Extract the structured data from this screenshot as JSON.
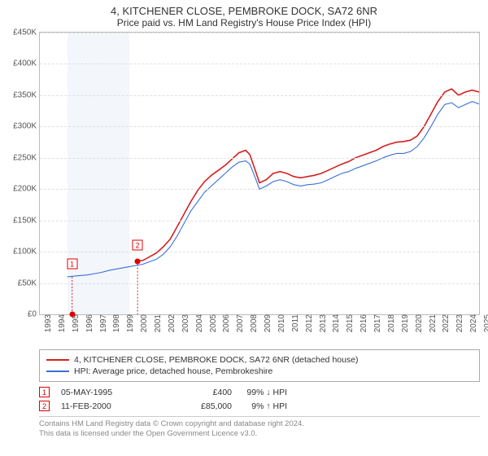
{
  "title": "4, KITCHENER CLOSE, PEMBROKE DOCK, SA72 6NR",
  "subtitle": "Price paid vs. HM Land Registry's House Price Index (HPI)",
  "chart": {
    "type": "line",
    "background_color": "#ffffff",
    "grid_color": "#e0e0e0",
    "border_color": "#bbb",
    "ylim": [
      0,
      450000
    ],
    "ytick_step": 50000,
    "yticks": [
      "£0",
      "£50K",
      "£100K",
      "£150K",
      "£200K",
      "£250K",
      "£300K",
      "£350K",
      "£400K",
      "£450K"
    ],
    "xlim": [
      1993,
      2025
    ],
    "xticks": [
      1993,
      1994,
      1995,
      1996,
      1997,
      1998,
      1999,
      2000,
      2001,
      2002,
      2003,
      2004,
      2005,
      2006,
      2007,
      2008,
      2009,
      2010,
      2011,
      2012,
      2013,
      2014,
      2015,
      2016,
      2017,
      2018,
      2019,
      2020,
      2021,
      2022,
      2023,
      2024,
      2025
    ],
    "shaded_bands": [
      {
        "from": 1995.0,
        "to": 1999.5,
        "color": "#f3f6fb"
      }
    ],
    "series": [
      {
        "name": "property_price",
        "label": "4, KITCHENER CLOSE, PEMBROKE DOCK, SA72 6NR (detached house)",
        "color": "#d42020",
        "line_width": 1.6,
        "data": [
          [
            2000.12,
            85000
          ],
          [
            2000.5,
            86000
          ],
          [
            2001,
            92000
          ],
          [
            2001.5,
            98000
          ],
          [
            2002,
            108000
          ],
          [
            2002.5,
            120000
          ],
          [
            2003,
            140000
          ],
          [
            2003.5,
            160000
          ],
          [
            2004,
            180000
          ],
          [
            2004.5,
            198000
          ],
          [
            2005,
            212000
          ],
          [
            2005.5,
            222000
          ],
          [
            2006,
            230000
          ],
          [
            2006.5,
            238000
          ],
          [
            2007,
            248000
          ],
          [
            2007.5,
            258000
          ],
          [
            2008,
            262000
          ],
          [
            2008.3,
            255000
          ],
          [
            2008.7,
            230000
          ],
          [
            2009,
            210000
          ],
          [
            2009.5,
            215000
          ],
          [
            2010,
            225000
          ],
          [
            2010.5,
            228000
          ],
          [
            2011,
            225000
          ],
          [
            2011.5,
            220000
          ],
          [
            2012,
            218000
          ],
          [
            2012.5,
            220000
          ],
          [
            2013,
            222000
          ],
          [
            2013.5,
            225000
          ],
          [
            2014,
            230000
          ],
          [
            2014.5,
            235000
          ],
          [
            2015,
            240000
          ],
          [
            2015.5,
            244000
          ],
          [
            2016,
            250000
          ],
          [
            2016.5,
            254000
          ],
          [
            2017,
            258000
          ],
          [
            2017.5,
            262000
          ],
          [
            2018,
            268000
          ],
          [
            2018.5,
            272000
          ],
          [
            2019,
            275000
          ],
          [
            2019.5,
            276000
          ],
          [
            2020,
            278000
          ],
          [
            2020.5,
            285000
          ],
          [
            2021,
            300000
          ],
          [
            2021.5,
            320000
          ],
          [
            2022,
            340000
          ],
          [
            2022.5,
            355000
          ],
          [
            2023,
            360000
          ],
          [
            2023.5,
            350000
          ],
          [
            2024,
            355000
          ],
          [
            2024.5,
            358000
          ],
          [
            2025,
            355000
          ]
        ]
      },
      {
        "name": "hpi",
        "label": "HPI: Average price, detached house, Pembrokeshire",
        "color": "#3a6fd8",
        "line_width": 1.1,
        "data": [
          [
            1995.0,
            60000
          ],
          [
            1995.5,
            61000
          ],
          [
            1996,
            62000
          ],
          [
            1996.5,
            63000
          ],
          [
            1997,
            65000
          ],
          [
            1997.5,
            67000
          ],
          [
            1998,
            70000
          ],
          [
            1998.5,
            72000
          ],
          [
            1999,
            74000
          ],
          [
            1999.5,
            76000
          ],
          [
            2000,
            78000
          ],
          [
            2000.5,
            80000
          ],
          [
            2001,
            84000
          ],
          [
            2001.5,
            88000
          ],
          [
            2002,
            96000
          ],
          [
            2002.5,
            108000
          ],
          [
            2003,
            125000
          ],
          [
            2003.5,
            145000
          ],
          [
            2004,
            165000
          ],
          [
            2004.5,
            180000
          ],
          [
            2005,
            195000
          ],
          [
            2005.5,
            205000
          ],
          [
            2006,
            215000
          ],
          [
            2006.5,
            225000
          ],
          [
            2007,
            235000
          ],
          [
            2007.5,
            243000
          ],
          [
            2008,
            245000
          ],
          [
            2008.3,
            240000
          ],
          [
            2008.7,
            218000
          ],
          [
            2009,
            200000
          ],
          [
            2009.5,
            205000
          ],
          [
            2010,
            212000
          ],
          [
            2010.5,
            215000
          ],
          [
            2011,
            212000
          ],
          [
            2011.5,
            207000
          ],
          [
            2012,
            205000
          ],
          [
            2012.5,
            207000
          ],
          [
            2013,
            208000
          ],
          [
            2013.5,
            210000
          ],
          [
            2014,
            215000
          ],
          [
            2014.5,
            220000
          ],
          [
            2015,
            225000
          ],
          [
            2015.5,
            228000
          ],
          [
            2016,
            233000
          ],
          [
            2016.5,
            237000
          ],
          [
            2017,
            241000
          ],
          [
            2017.5,
            245000
          ],
          [
            2018,
            250000
          ],
          [
            2018.5,
            254000
          ],
          [
            2019,
            257000
          ],
          [
            2019.5,
            257000
          ],
          [
            2020,
            260000
          ],
          [
            2020.5,
            268000
          ],
          [
            2021,
            282000
          ],
          [
            2021.5,
            300000
          ],
          [
            2022,
            320000
          ],
          [
            2022.5,
            335000
          ],
          [
            2023,
            338000
          ],
          [
            2023.5,
            330000
          ],
          [
            2024,
            335000
          ],
          [
            2024.5,
            340000
          ],
          [
            2025,
            336000
          ]
        ]
      }
    ],
    "sale_markers": [
      {
        "n": "1",
        "x": 1995.35,
        "y_label": 80000,
        "y_dot": 400,
        "dashed_to": 0
      },
      {
        "n": "2",
        "x": 2000.12,
        "y_label": 110000,
        "y_dot": 85000,
        "dashed_to": 0
      }
    ]
  },
  "legend_border": "#aaa",
  "sales": [
    {
      "n": "1",
      "date": "05-MAY-1995",
      "price": "£400",
      "pct": "99% ↓ HPI"
    },
    {
      "n": "2",
      "date": "11-FEB-2000",
      "price": "£85,000",
      "pct": "9% ↑ HPI"
    }
  ],
  "footer_line1": "Contains HM Land Registry data © Crown copyright and database right 2024.",
  "footer_line2": "This data is licensed under the Open Government Licence v3.0."
}
